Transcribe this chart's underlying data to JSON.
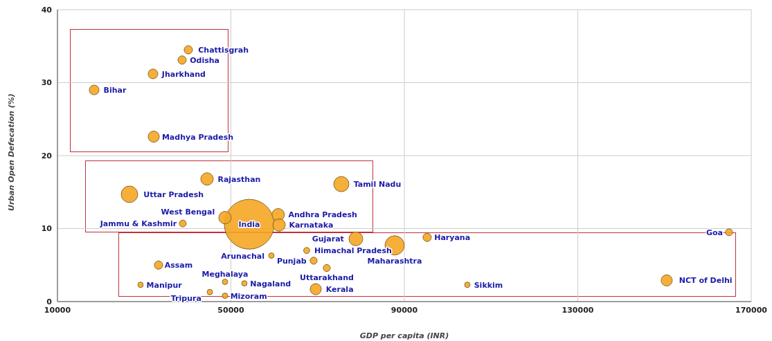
{
  "chart_data": {
    "type": "bubble",
    "xlabel": "GDP per capita (INR)",
    "ylabel": "Urban Open Defecation (%)",
    "xlim": [
      10000,
      170000
    ],
    "xticks": [
      10000,
      50000,
      90000,
      130000,
      170000
    ],
    "ylim": [
      0,
      40
    ],
    "yticks": [
      0,
      10,
      20,
      30,
      40
    ],
    "grid": true,
    "legend": false,
    "series": [
      {
        "color": "#f5a623",
        "x": [
          18460,
          32030,
          40180,
          38740,
          32200,
          26600,
          44500,
          75470,
          54230,
          60900,
          61100,
          48640,
          38900,
          78820,
          87760,
          95260,
          164880,
          150510,
          104520,
          69560,
          72110,
          69080,
          67480,
          59340,
          33310,
          29160,
          48640,
          53110,
          45130,
          48640
        ],
        "values": [
          29.0,
          31.2,
          34.5,
          33.1,
          22.6,
          14.7,
          16.8,
          16.1,
          10.6,
          11.9,
          10.5,
          11.5,
          10.7,
          8.6,
          7.7,
          8.8,
          9.5,
          2.9,
          2.3,
          1.7,
          4.6,
          5.6,
          7.0,
          6.3,
          5.0,
          2.3,
          2.7,
          2.5,
          1.3,
          0.8
        ],
        "sizes": [
          0.038,
          0.038,
          0.028,
          0.028,
          0.05,
          0.11,
          0.0625,
          0.093,
          1,
          0.0625,
          0.0625,
          0.0625,
          0.019,
          0.077,
          0.15,
          0.028,
          0.02,
          0.05,
          0.012,
          0.05,
          0.02,
          0.02,
          0.015,
          0.012,
          0.028,
          0.012,
          0.012,
          0.012,
          0.012,
          0.012
        ]
      }
    ],
    "annotations": [
      {
        "text": "Bihar",
        "x": 18460,
        "y": 29.0
      },
      {
        "text": "Jharkhand",
        "x": 32030,
        "y": 31.2
      },
      {
        "text": "Chattisgrah",
        "x": 40180,
        "y": 34.5
      },
      {
        "text": "Odisha",
        "x": 38740,
        "y": 33.1
      },
      {
        "text": "Madhya Pradesh",
        "x": 32200,
        "y": 22.6
      },
      {
        "text": "Uttar Pradesh",
        "x": 26600,
        "y": 14.7
      },
      {
        "text": "Rajasthan",
        "x": 44500,
        "y": 16.8
      },
      {
        "text": "Tamil Nadu",
        "x": 75470,
        "y": 16.1
      },
      {
        "text": "India",
        "x": 54230,
        "y": 10.6
      },
      {
        "text": "Andhra Pradesh",
        "x": 60900,
        "y": 11.9
      },
      {
        "text": "Karnataka",
        "x": 61100,
        "y": 10.5
      },
      {
        "text": "West Bengal",
        "x": 48640,
        "y": 11.5
      },
      {
        "text": "Jammu & Kashmir",
        "x": 38900,
        "y": 10.7
      },
      {
        "text": "Gujarat",
        "x": 78820,
        "y": 8.6
      },
      {
        "text": "Maharashtra",
        "x": 87760,
        "y": 7.7
      },
      {
        "text": "Haryana",
        "x": 95260,
        "y": 8.8
      },
      {
        "text": "Goa",
        "x": 164880,
        "y": 9.5
      },
      {
        "text": "NCT of Delhi",
        "x": 150510,
        "y": 2.9
      },
      {
        "text": "Sikkim",
        "x": 104520,
        "y": 2.3
      },
      {
        "text": "Kerala",
        "x": 69560,
        "y": 1.7
      },
      {
        "text": "Uttarakhand",
        "x": 72110,
        "y": 4.6
      },
      {
        "text": "Punjab",
        "x": 69080,
        "y": 5.6
      },
      {
        "text": "Himachal Pradesh",
        "x": 67480,
        "y": 7.0
      },
      {
        "text": "Arunachal",
        "x": 59340,
        "y": 6.3
      },
      {
        "text": "Assam",
        "x": 33310,
        "y": 5.0
      },
      {
        "text": "Manipur",
        "x": 29160,
        "y": 2.3
      },
      {
        "text": "Meghalaya",
        "x": 48640,
        "y": 2.7
      },
      {
        "text": "Nagaland",
        "x": 53110,
        "y": 2.5
      },
      {
        "text": "Tripura",
        "x": 45130,
        "y": 1.3
      },
      {
        "text": "Mizoram",
        "x": 48640,
        "y": 0.8
      }
    ]
  }
}
